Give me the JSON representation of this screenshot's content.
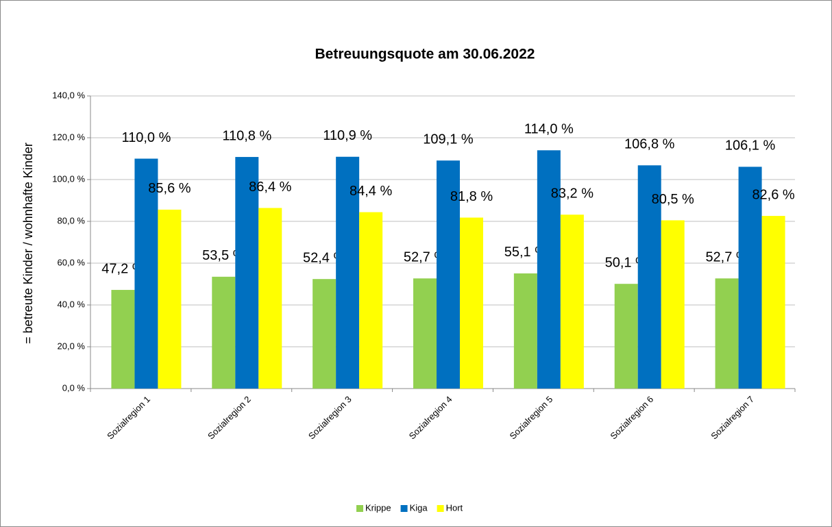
{
  "chart_data": {
    "type": "bar",
    "title": "Betreuungsquote am 30.06.2022",
    "y_label": "= betreute Kinder / wohnhafte Kinder",
    "categories": [
      "Sozialregion 1",
      "Sozialregion 2",
      "Sozialregion 3",
      "Sozialregion 4",
      "Sozialregion 5",
      "Sozialregion 6",
      "Sozialregion 7"
    ],
    "series": [
      {
        "name": "Krippe",
        "color": "#92d050",
        "values": [
          47.2,
          53.5,
          52.4,
          52.7,
          55.1,
          50.1,
          52.7
        ],
        "value_labels": [
          "47,2 %",
          "53,5 %",
          "52,4 %",
          "52,7 %",
          "55,1 %",
          "50,1 %",
          "52,7 %"
        ]
      },
      {
        "name": "Kiga",
        "color": "#0070c0",
        "values": [
          110.0,
          110.8,
          110.9,
          109.1,
          114.0,
          106.8,
          106.1
        ],
        "value_labels": [
          "110,0 %",
          "110,8 %",
          "110,9 %",
          "109,1 %",
          "114,0 %",
          "106,8 %",
          "106,1 %"
        ]
      },
      {
        "name": "Hort",
        "color": "#ffff00",
        "values": [
          85.6,
          86.4,
          84.4,
          81.8,
          83.2,
          80.5,
          82.6
        ],
        "value_labels": [
          "85,6 %",
          "86,4 %",
          "84,4 %",
          "81,8 %",
          "83,2 %",
          "80,5 %",
          "82,6 %"
        ]
      }
    ],
    "ylim": [
      0,
      140
    ],
    "yticks": [
      {
        "value": 0,
        "label": "0,0 %"
      },
      {
        "value": 20,
        "label": "20,0 %"
      },
      {
        "value": 40,
        "label": "40,0 %"
      },
      {
        "value": 60,
        "label": "60,0 %"
      },
      {
        "value": 80,
        "label": "80,0 %"
      },
      {
        "value": 100,
        "label": "100,0 %"
      },
      {
        "value": 120,
        "label": "120,0 %"
      },
      {
        "value": 140,
        "label": "140,0 %"
      }
    ],
    "grid": true,
    "legend": "bottom"
  }
}
